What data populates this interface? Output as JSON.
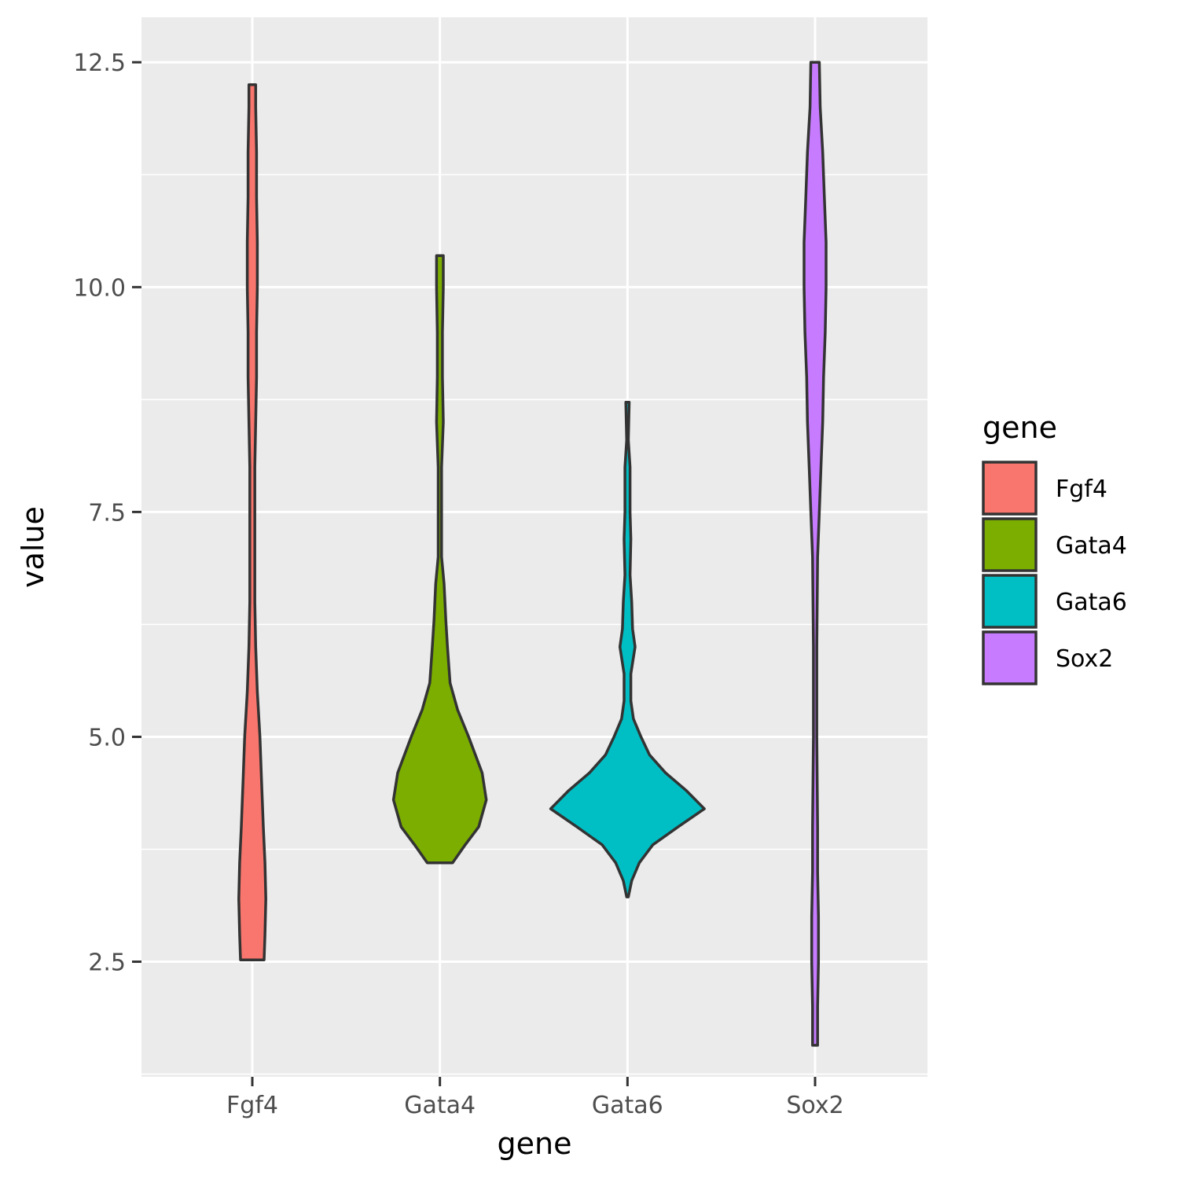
{
  "chart_data": {
    "type": "violin",
    "xlabel": "gene",
    "ylabel": "value",
    "ylim": [
      1.22,
      13.0
    ],
    "yticks": [
      2.5,
      5.0,
      7.5,
      10.0,
      12.5
    ],
    "ytick_labels": [
      "2.5",
      "5.0",
      "7.5",
      "10.0",
      "12.5"
    ],
    "categories": [
      "Fgf4",
      "Gata4",
      "Gata6",
      "Sox2"
    ],
    "grid": true,
    "legend": {
      "title": "gene",
      "position": "right",
      "entries": [
        "Fgf4",
        "Gata4",
        "Gata6",
        "Sox2"
      ]
    },
    "series": [
      {
        "name": "Fgf4",
        "color": "#F8766D",
        "min": 2.52,
        "max": 12.25,
        "density": [
          [
            2.52,
            0.14
          ],
          [
            2.8,
            0.15
          ],
          [
            3.2,
            0.16
          ],
          [
            3.6,
            0.15
          ],
          [
            4.0,
            0.13
          ],
          [
            4.5,
            0.11
          ],
          [
            5.0,
            0.09
          ],
          [
            5.5,
            0.06
          ],
          [
            6.0,
            0.04
          ],
          [
            6.5,
            0.03
          ],
          [
            7.0,
            0.03
          ],
          [
            7.5,
            0.03
          ],
          [
            8.0,
            0.03
          ],
          [
            8.5,
            0.04
          ],
          [
            9.0,
            0.05
          ],
          [
            9.5,
            0.05
          ],
          [
            10.0,
            0.06
          ],
          [
            10.5,
            0.06
          ],
          [
            11.0,
            0.05
          ],
          [
            11.5,
            0.05
          ],
          [
            12.0,
            0.04
          ],
          [
            12.25,
            0.04
          ]
        ]
      },
      {
        "name": "Gata4",
        "color": "#7CAE00",
        "min": 3.6,
        "max": 10.35,
        "density": [
          [
            3.6,
            0.15
          ],
          [
            3.8,
            0.3
          ],
          [
            4.0,
            0.46
          ],
          [
            4.3,
            0.55
          ],
          [
            4.6,
            0.5
          ],
          [
            5.0,
            0.34
          ],
          [
            5.3,
            0.21
          ],
          [
            5.6,
            0.12
          ],
          [
            6.0,
            0.09
          ],
          [
            6.3,
            0.07
          ],
          [
            6.7,
            0.05
          ],
          [
            7.0,
            0.02
          ],
          [
            7.5,
            0.02
          ],
          [
            8.0,
            0.02
          ],
          [
            8.5,
            0.04
          ],
          [
            9.0,
            0.03
          ],
          [
            9.5,
            0.03
          ],
          [
            10.0,
            0.04
          ],
          [
            10.35,
            0.04
          ]
        ]
      },
      {
        "name": "Gata6",
        "color": "#00BFC4",
        "min": 3.22,
        "max": 8.72,
        "density": [
          [
            3.22,
            0.01
          ],
          [
            3.4,
            0.05
          ],
          [
            3.6,
            0.14
          ],
          [
            3.8,
            0.3
          ],
          [
            4.0,
            0.6
          ],
          [
            4.2,
            0.91
          ],
          [
            4.4,
            0.7
          ],
          [
            4.6,
            0.45
          ],
          [
            4.8,
            0.26
          ],
          [
            5.0,
            0.16
          ],
          [
            5.2,
            0.07
          ],
          [
            5.4,
            0.04
          ],
          [
            5.7,
            0.04
          ],
          [
            6.0,
            0.09
          ],
          [
            6.2,
            0.06
          ],
          [
            6.5,
            0.05
          ],
          [
            6.8,
            0.03
          ],
          [
            7.2,
            0.04
          ],
          [
            7.5,
            0.03
          ],
          [
            8.0,
            0.03
          ],
          [
            8.3,
            0.01
          ],
          [
            8.72,
            0.02
          ]
        ]
      },
      {
        "name": "Sox2",
        "color": "#C77CFF",
        "min": 1.57,
        "max": 12.5,
        "density": [
          [
            1.57,
            0.03
          ],
          [
            2.0,
            0.03
          ],
          [
            2.5,
            0.04
          ],
          [
            3.0,
            0.04
          ],
          [
            3.5,
            0.03
          ],
          [
            4.0,
            0.03
          ],
          [
            5.0,
            0.02
          ],
          [
            6.0,
            0.02
          ],
          [
            7.0,
            0.03
          ],
          [
            7.5,
            0.05
          ],
          [
            8.0,
            0.07
          ],
          [
            8.5,
            0.09
          ],
          [
            9.0,
            0.1
          ],
          [
            9.5,
            0.12
          ],
          [
            10.0,
            0.13
          ],
          [
            10.5,
            0.13
          ],
          [
            11.0,
            0.11
          ],
          [
            11.5,
            0.09
          ],
          [
            12.0,
            0.06
          ],
          [
            12.5,
            0.05
          ]
        ]
      }
    ]
  }
}
